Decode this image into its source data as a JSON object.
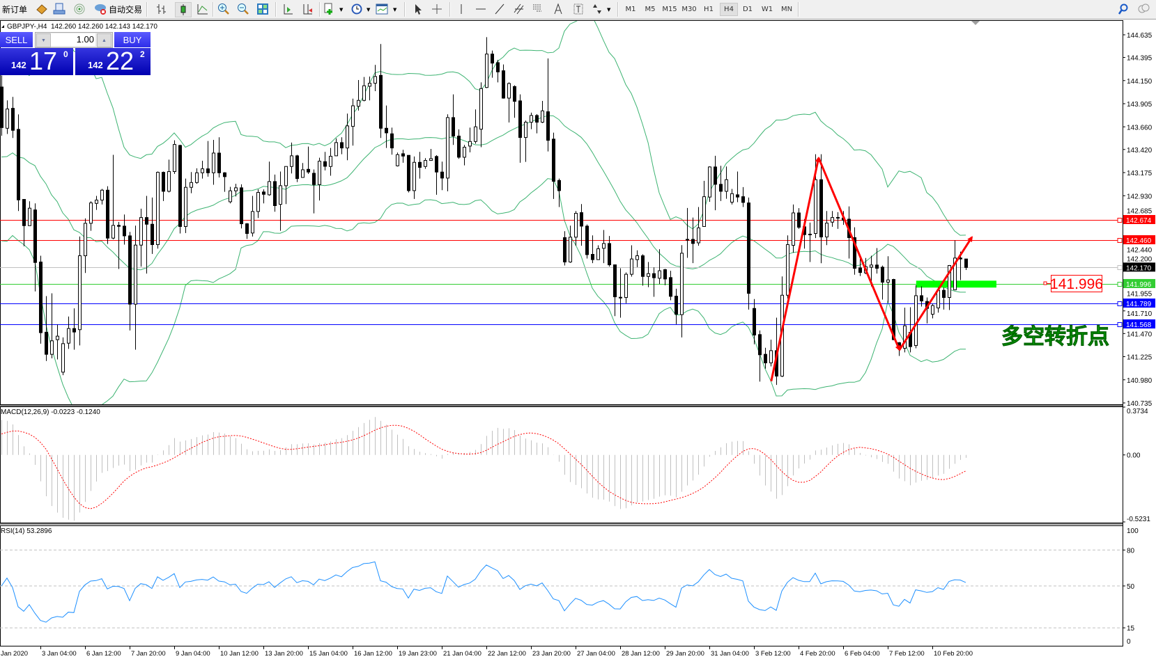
{
  "toolbar": {
    "new_order": "新订单",
    "auto_trading": "自动交易",
    "timeframes": [
      "M1",
      "M5",
      "M15",
      "M30",
      "H1",
      "H4",
      "D1",
      "W1",
      "MN"
    ],
    "active_timeframe": "H4"
  },
  "chart_header": {
    "text": "GBPJPY-,H4  142.260 142.260 142.143 142.170"
  },
  "ticket": {
    "sell_label": "SELL",
    "buy_label": "BUY",
    "lot": "1.00",
    "sell_big": "142",
    "sell_main": "17",
    "sell_sup": "0",
    "buy_big": "142",
    "buy_main": "22",
    "buy_sup": "2",
    "sell_color": "#2e2ee8",
    "buy_color": "#2e2ee8"
  },
  "annotation": {
    "label_price": "141.996",
    "text": "多空转折点",
    "text_color": "#00dd00"
  },
  "macd_header": "MACD(12,26,9) -0.0223 -0.1240",
  "rsi_header": "RSI(14) 53.2896",
  "chart_data": {
    "type": "candlestick",
    "symbol": "GBPJPY-",
    "timeframe": "H4",
    "price_axis": {
      "min": 140.735,
      "max": 144.635,
      "ticks": [
        "144.635",
        "144.395",
        "144.150",
        "143.905",
        "143.660",
        "143.420",
        "143.175",
        "142.930",
        "142.685",
        "142.440",
        "142.200",
        "141.955",
        "141.710",
        "141.470",
        "141.225",
        "140.980",
        "140.735"
      ]
    },
    "time_labels": [
      "Jan 2020",
      "3 Jan 04:00",
      "6 Jan 12:00",
      "7 Jan 20:00",
      "9 Jan 04:00",
      "10 Jan 12:00",
      "13 Jan 20:00",
      "15 Jan 04:00",
      "16 Jan 12:00",
      "19 Jan 23:00",
      "21 Jan 04:00",
      "22 Jan 12:00",
      "23 Jan 20:00",
      "27 Jan 04:00",
      "28 Jan 12:00",
      "29 Jan 20:00",
      "31 Jan 04:00",
      "3 Feb 12:00",
      "4 Feb 20:00",
      "6 Feb 04:00",
      "7 Feb 12:00",
      "10 Feb 20:00"
    ],
    "ohlc": [
      [
        144.082,
        144.205,
        143.566,
        143.652
      ],
      [
        143.645,
        143.94,
        143.584,
        143.849
      ],
      [
        143.856,
        143.977,
        143.542,
        143.623
      ],
      [
        143.633,
        143.792,
        142.768,
        142.886
      ],
      [
        142.891,
        142.891,
        142.395,
        142.613
      ],
      [
        142.613,
        142.871,
        142.61,
        142.798
      ],
      [
        142.78,
        142.849,
        141.916,
        142.223
      ],
      [
        142.228,
        142.294,
        141.363,
        141.479
      ],
      [
        141.484,
        141.867,
        141.179,
        141.25
      ],
      [
        141.25,
        141.896,
        141.208,
        141.393
      ],
      [
        141.405,
        141.565,
        141.196,
        141.442
      ],
      [
        141.061,
        141.429,
        141.029,
        141.363
      ],
      [
        141.368,
        141.65,
        141.307,
        141.523
      ],
      [
        141.523,
        141.737,
        141.299,
        141.486
      ],
      [
        141.511,
        142.498,
        141.344,
        142.294
      ],
      [
        142.294,
        142.69,
        142.112,
        142.638
      ],
      [
        142.638,
        142.871,
        142.559,
        142.854
      ],
      [
        142.849,
        142.928,
        142.78,
        142.884
      ],
      [
        142.884,
        143.002,
        142.837,
        142.989
      ],
      [
        142.989,
        143.031,
        142.419,
        142.481
      ],
      [
        142.481,
        143.363,
        142.468,
        142.616
      ],
      [
        142.616,
        142.653,
        142.154,
        142.606
      ],
      [
        142.608,
        142.731,
        142.412,
        142.505
      ],
      [
        142.505,
        142.547,
        141.503,
        141.781
      ],
      [
        141.781,
        142.613,
        141.299,
        142.407
      ],
      [
        142.407,
        142.793,
        142.179,
        142.699
      ],
      [
        142.699,
        142.928,
        142.105,
        142.628
      ],
      [
        142.628,
        142.911,
        142.314,
        142.412
      ],
      [
        142.412,
        143.186,
        142.37,
        143.178
      ],
      [
        143.178,
        143.186,
        142.874,
        142.977
      ],
      [
        142.977,
        143.313,
        142.965,
        143.186
      ],
      [
        143.186,
        143.517,
        143.161,
        143.473
      ],
      [
        143.463,
        143.47,
        142.53,
        142.604
      ],
      [
        142.604,
        143.112,
        142.535,
        143.019
      ],
      [
        143.019,
        143.181,
        142.957,
        143.07
      ],
      [
        143.07,
        143.22,
        143.056,
        143.173
      ],
      [
        143.173,
        143.301,
        143.112,
        143.215
      ],
      [
        143.215,
        143.51,
        143.132,
        143.173
      ],
      [
        143.173,
        143.522,
        143.046,
        143.382
      ],
      [
        143.382,
        143.549,
        143.124,
        143.173
      ],
      [
        143.173,
        143.18,
        142.972,
        143.132
      ],
      [
        142.866,
        143.024,
        142.849,
        142.982
      ],
      [
        142.982,
        143.056,
        142.923,
        143.014
      ],
      [
        143.014,
        143.051,
        142.584,
        142.633
      ],
      [
        142.633,
        142.64,
        142.473,
        142.53
      ],
      [
        142.535,
        142.928,
        142.498,
        142.763
      ],
      [
        142.763,
        142.997,
        142.694,
        142.965
      ],
      [
        142.97,
        142.997,
        142.849,
        142.945
      ],
      [
        142.94,
        143.291,
        142.93,
        143.08
      ],
      [
        143.08,
        143.154,
        142.761,
        142.825
      ],
      [
        142.839,
        143.186,
        142.559,
        143.036
      ],
      [
        143.036,
        143.24,
        142.842,
        143.24
      ],
      [
        143.24,
        143.493,
        143.166,
        143.353
      ],
      [
        143.353,
        143.363,
        143.075,
        143.112
      ],
      [
        143.124,
        143.277,
        143.12,
        143.205
      ],
      [
        143.21,
        143.451,
        143.161,
        143.181
      ],
      [
        143.168,
        143.208,
        142.743,
        143.048
      ],
      [
        143.048,
        143.333,
        142.879,
        143.296
      ],
      [
        143.291,
        143.395,
        143.198,
        143.242
      ],
      [
        143.24,
        143.436,
        143.142,
        143.348
      ],
      [
        143.353,
        143.537,
        143.35,
        143.493
      ],
      [
        143.493,
        143.549,
        143.37,
        143.436
      ],
      [
        143.436,
        143.8,
        143.306,
        143.67
      ],
      [
        143.665,
        143.959,
        143.461,
        143.883
      ],
      [
        143.878,
        144.156,
        143.832,
        143.94
      ],
      [
        143.94,
        144.188,
        143.93,
        144.095
      ],
      [
        144.09,
        144.193,
        143.94,
        144.122
      ],
      [
        144.122,
        144.316,
        144.038,
        144.193
      ],
      [
        144.205,
        144.537,
        143.542,
        143.645
      ],
      [
        143.645,
        143.886,
        143.436,
        143.596
      ],
      [
        143.586,
        143.652,
        143.365,
        143.436
      ],
      [
        143.247,
        143.387,
        143.24,
        143.365
      ],
      [
        143.375,
        143.417,
        143.279,
        143.35
      ],
      [
        143.358,
        143.36,
        142.965,
        142.984
      ],
      [
        142.984,
        143.346,
        142.896,
        143.284
      ],
      [
        143.284,
        143.395,
        143.112,
        143.23
      ],
      [
        143.24,
        143.328,
        143.215,
        143.304
      ],
      [
        143.304,
        143.426,
        143.3,
        143.323
      ],
      [
        143.346,
        143.36,
        142.94,
        143.181
      ],
      [
        143.181,
        143.291,
        142.989,
        143.117
      ],
      [
        143.117,
        143.793,
        142.977,
        143.758
      ],
      [
        143.758,
        144.004,
        143.468,
        143.562
      ],
      [
        143.562,
        143.633,
        143.321,
        143.338
      ],
      [
        143.338,
        143.468,
        143.252,
        143.444
      ],
      [
        143.456,
        143.652,
        143.39,
        143.505
      ],
      [
        143.505,
        143.844,
        143.481,
        143.66
      ],
      [
        143.635,
        144.131,
        143.444,
        144.065
      ],
      [
        144.077,
        144.61,
        144.07,
        144.431
      ],
      [
        144.431,
        144.468,
        144.181,
        144.335
      ],
      [
        144.34,
        144.37,
        144.131,
        144.242
      ],
      [
        144.254,
        144.321,
        143.959,
        143.964
      ],
      [
        143.964,
        144.131,
        143.706,
        144.119
      ],
      [
        144.087,
        144.1,
        143.756,
        143.93
      ],
      [
        143.935,
        144.004,
        143.279,
        143.547
      ],
      [
        143.547,
        143.726,
        143.289,
        143.709
      ],
      [
        143.709,
        143.81,
        143.635,
        143.78
      ],
      [
        143.78,
        143.795,
        143.591,
        143.709
      ],
      [
        143.709,
        143.935,
        143.7,
        143.829
      ],
      [
        143.82,
        144.384,
        143.399,
        143.517
      ],
      [
        143.53,
        143.598,
        142.896,
        143.083
      ],
      [
        143.092,
        143.112,
        142.81,
        142.984
      ],
      [
        142.486,
        142.554,
        142.191,
        142.228
      ],
      [
        142.228,
        142.613,
        142.22,
        142.491
      ],
      [
        142.491,
        142.768,
        142.4,
        142.744
      ],
      [
        142.751,
        142.842,
        142.4,
        142.608
      ],
      [
        142.608,
        142.625,
        142.265,
        142.306
      ],
      [
        142.309,
        142.51,
        142.216,
        142.253
      ],
      [
        142.253,
        142.405,
        142.25,
        142.368
      ],
      [
        142.373,
        142.567,
        142.216,
        142.424
      ],
      [
        142.424,
        142.503,
        142.179,
        142.198
      ],
      [
        142.198,
        142.2,
        141.655,
        141.859
      ],
      [
        141.854,
        142.162,
        141.638,
        141.85
      ],
      [
        141.852,
        142.117,
        141.791,
        142.098
      ],
      [
        142.098,
        142.405,
        142.073,
        142.26
      ],
      [
        142.253,
        142.351,
        142.174,
        142.294
      ],
      [
        142.294,
        142.31,
        141.977,
        142.075
      ],
      [
        142.075,
        142.228,
        141.962,
        142.105
      ],
      [
        142.105,
        142.171,
        141.859,
        142.061
      ],
      [
        142.056,
        142.363,
        141.994,
        142.135
      ],
      [
        142.147,
        142.155,
        141.982,
        142.048
      ],
      [
        142.063,
        142.135,
        141.822,
        141.864
      ],
      [
        141.866,
        141.945,
        141.569,
        141.675
      ],
      [
        141.67,
        142.407,
        141.429,
        142.321
      ],
      [
        142.468,
        142.8,
        142.272,
        142.46
      ],
      [
        142.468,
        142.699,
        142.216,
        142.424
      ],
      [
        142.431,
        142.81,
        142.4,
        142.589
      ],
      [
        142.604,
        143.088,
        142.6,
        142.92
      ],
      [
        142.916,
        143.242,
        142.866,
        143.235
      ],
      [
        143.235,
        143.353,
        142.776,
        143.051
      ],
      [
        143.051,
        143.247,
        142.874,
        142.977
      ],
      [
        142.977,
        143.24,
        142.898,
        143.1
      ],
      [
        142.862,
        143.002,
        142.837,
        142.952
      ],
      [
        142.94,
        143.186,
        142.862,
        142.916
      ],
      [
        142.92,
        143.021,
        142.81,
        142.859
      ],
      [
        142.854,
        142.911,
        141.724,
        141.896
      ],
      [
        141.736,
        141.835,
        141.356,
        141.454
      ],
      [
        141.459,
        141.503,
        140.961,
        141.245
      ],
      [
        141.25,
        141.319,
        141.098,
        141.159
      ],
      [
        141.159,
        141.405,
        141.122,
        141.289
      ],
      [
        141.289,
        141.638,
        140.926,
        141.019
      ],
      [
        141.019,
        142.075,
        141.01,
        141.876
      ],
      [
        141.876,
        142.51,
        141.84,
        142.412
      ],
      [
        142.405,
        142.837,
        142.326,
        142.748
      ],
      [
        142.748,
        142.798,
        142.579,
        142.596
      ],
      [
        142.601,
        142.682,
        142.37,
        142.518
      ],
      [
        142.523,
        142.645,
        142.228,
        142.52
      ],
      [
        142.53,
        143.37,
        142.481,
        143.1
      ],
      [
        143.1,
        143.37,
        142.215,
        142.493
      ],
      [
        142.493,
        142.768,
        142.407,
        142.64
      ],
      [
        142.65,
        142.768,
        142.601,
        142.699
      ],
      [
        142.7,
        142.756,
        142.579,
        142.694
      ],
      [
        142.694,
        142.768,
        142.621,
        142.67
      ],
      [
        142.682,
        142.817,
        142.265,
        142.486
      ],
      [
        142.486,
        142.596,
        142.093,
        142.161
      ],
      [
        142.166,
        142.27,
        142.08,
        142.117
      ],
      [
        142.112,
        142.27,
        142.1,
        142.178
      ],
      [
        142.173,
        142.294,
        141.97,
        142.196
      ],
      [
        142.196,
        142.375,
        142.105,
        142.161
      ],
      [
        142.173,
        142.19,
        141.83,
        142.014
      ],
      [
        142.014,
        142.289,
        141.798,
        142.038
      ],
      [
        142.043,
        142.05,
        141.4,
        141.405
      ],
      [
        141.373,
        141.38,
        141.233,
        141.314
      ],
      [
        141.314,
        141.744,
        141.27,
        141.552
      ],
      [
        141.483,
        141.749,
        141.27,
        141.331
      ],
      [
        141.343,
        141.982,
        141.314,
        141.871
      ],
      [
        141.871,
        141.97,
        141.756,
        141.815
      ],
      [
        141.81,
        141.852,
        141.577,
        141.736
      ],
      [
        141.675,
        141.786,
        141.631,
        141.766
      ],
      [
        141.741,
        141.958,
        141.692,
        141.928
      ],
      [
        141.928,
        141.96,
        141.724,
        141.852
      ],
      [
        141.852,
        142.196,
        141.719,
        142.191
      ],
      [
        141.933,
        142.456,
        141.928,
        142.27
      ],
      [
        142.27,
        142.338,
        142.036,
        142.26
      ],
      [
        142.26,
        142.26,
        142.143,
        142.17
      ]
    ],
    "bollinger": {
      "period": 20,
      "deviation": 2,
      "color": "#3cb371"
    },
    "levels": [
      {
        "price": "142.674",
        "color": "#ff0000",
        "tag_color": "#ff0000"
      },
      {
        "price": "142.460",
        "color": "#ff0000",
        "tag_color": "#ff0000"
      },
      {
        "price": "142.170",
        "color": "#c0c0c0",
        "tag_color": "#000000"
      },
      {
        "price": "141.996",
        "color": "#32cd32",
        "tag_color": "#32cd32"
      },
      {
        "price": "141.789",
        "color": "#0000ff",
        "tag_color": "#0000ff"
      },
      {
        "price": "141.568",
        "color": "#0000ff",
        "tag_color": "#0000ff"
      }
    ],
    "trendlines": [
      {
        "from": [
          138.1,
          140.965
        ],
        "to": [
          146.6,
          143.331
        ],
        "color": "#ff0000"
      },
      {
        "from": [
          146.6,
          143.331
        ],
        "to": [
          161.1,
          141.297
        ],
        "color": "#ff0000"
      },
      {
        "from": [
          161.1,
          141.297
        ],
        "to": [
          174.1,
          142.491
        ],
        "color": "#ff0000"
      }
    ],
    "zone": {
      "from_bar": 164.1,
      "to_bar": 178.5,
      "price_top": 142.03,
      "price_bottom": 141.957,
      "color": "#00ff00"
    },
    "macd": {
      "fast": 12,
      "slow": 26,
      "signal": 9,
      "axis_max": "0.3734",
      "axis_zero": "0.00",
      "axis_min": "-0.5231",
      "hist_color": "#c0c0c0",
      "signal_color": "#ff0000"
    },
    "rsi": {
      "period": 14,
      "levels": [
        "80",
        "50",
        "15"
      ],
      "axis_top": "100",
      "axis_bottom": "0",
      "color": "#1e90ff"
    }
  }
}
